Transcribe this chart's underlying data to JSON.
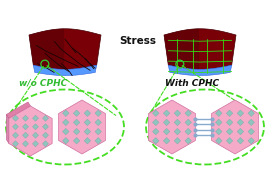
{
  "stress_text": "Stress",
  "label_left": "w/o CPHC",
  "label_right": "With CPHC",
  "bg_color": "#ffffff",
  "stress_color": "#111111",
  "label_left_color": "#33bb33",
  "label_right_color": "#111111",
  "perov_dark": "#7a0008",
  "perov_shadow": "#550005",
  "blue_layer": "#5599ff",
  "crack_color": "#1a0505",
  "green_crack": "#33dd11",
  "circle_color": "#33cc33",
  "hex_pink": "#f5aac8",
  "hex_pink_dark": "#e080a8",
  "hex_teal": "#90c4be",
  "hex_teal_edge": "#70a8a2",
  "ellipse_color": "#44dd22",
  "arrow_color": "#44dd22",
  "connector_color": "#88aacc",
  "fig_width": 2.77,
  "fig_height": 1.89,
  "dpi": 100
}
